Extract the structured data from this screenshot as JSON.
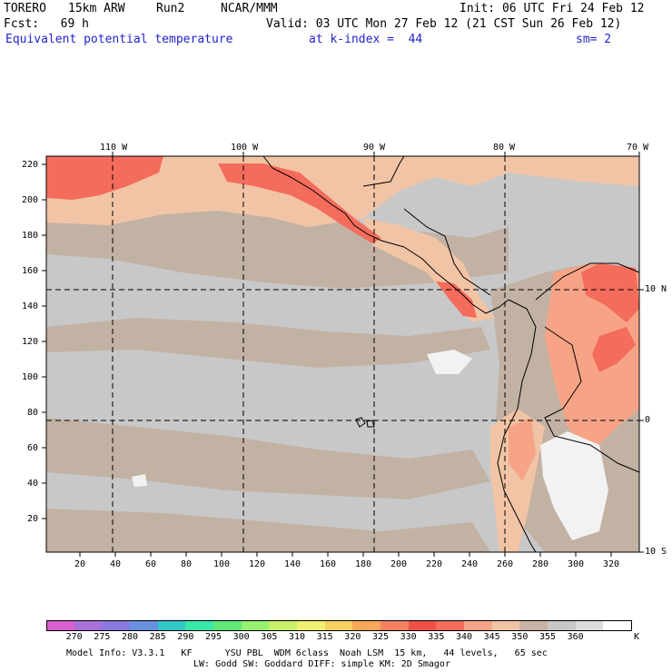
{
  "header": {
    "model": "TORERO",
    "resolution": "15km ARW",
    "run": "Run2",
    "org": "NCAR/MMM",
    "init": "Init: 06 UTC Fri 24 Feb 12",
    "fcst": "Fcst:   69 h",
    "valid": "Valid: 03 UTC Mon 27 Feb 12 (21 CST Sun 26 Feb 12)",
    "field": "Equivalent potential temperature",
    "level": "at k-index =  44",
    "smooth": "sm= 2"
  },
  "map": {
    "top_labels": [
      "110 W",
      "100 W",
      "90 W",
      "80 W",
      "70 W"
    ],
    "right_labels": [
      "10 N",
      "0",
      "10 S"
    ],
    "y_ticks": [
      "220",
      "200",
      "180",
      "160",
      "140",
      "120",
      "100",
      "80",
      "60",
      "40",
      "20"
    ],
    "x_ticks": [
      "20",
      "40",
      "60",
      "80",
      "100",
      "120",
      "140",
      "160",
      "180",
      "200",
      "220",
      "240",
      "260",
      "280",
      "300",
      "320"
    ],
    "fill_colors": {
      "background": "#c8c8c8",
      "tan": "#c2b2a4",
      "peach": "#f2c4a6",
      "salmon": "#f7a486",
      "red": "#f46c5c",
      "white": "#f2f2f2"
    }
  },
  "colorbar": {
    "colors": [
      "#d860d0",
      "#a870d8",
      "#8878e0",
      "#6890e0",
      "#30c8c8",
      "#38e8a8",
      "#60e878",
      "#98f070",
      "#c8f068",
      "#f0f070",
      "#f8d060",
      "#f8a858",
      "#f88060",
      "#f05048",
      "#f46c5c",
      "#f7a486",
      "#f2c4a6",
      "#c8b4a6",
      "#c8c8c8",
      "#dcdcdc",
      "#ffffff"
    ],
    "labels": [
      "270",
      "275",
      "280",
      "285",
      "290",
      "295",
      "300",
      "305",
      "310",
      "315",
      "320",
      "325",
      "330",
      "335",
      "340",
      "345",
      "350",
      "355",
      "360"
    ],
    "unit": "K"
  },
  "footer": {
    "line1": "Model Info: V3.3.1   KF      YSU PBL  WDM 6class  Noah LSM  15 km,   44 levels,   65 sec",
    "line2": "LW: Godd SW: Goddard DIFF: simple KM: 2D Smagor"
  }
}
